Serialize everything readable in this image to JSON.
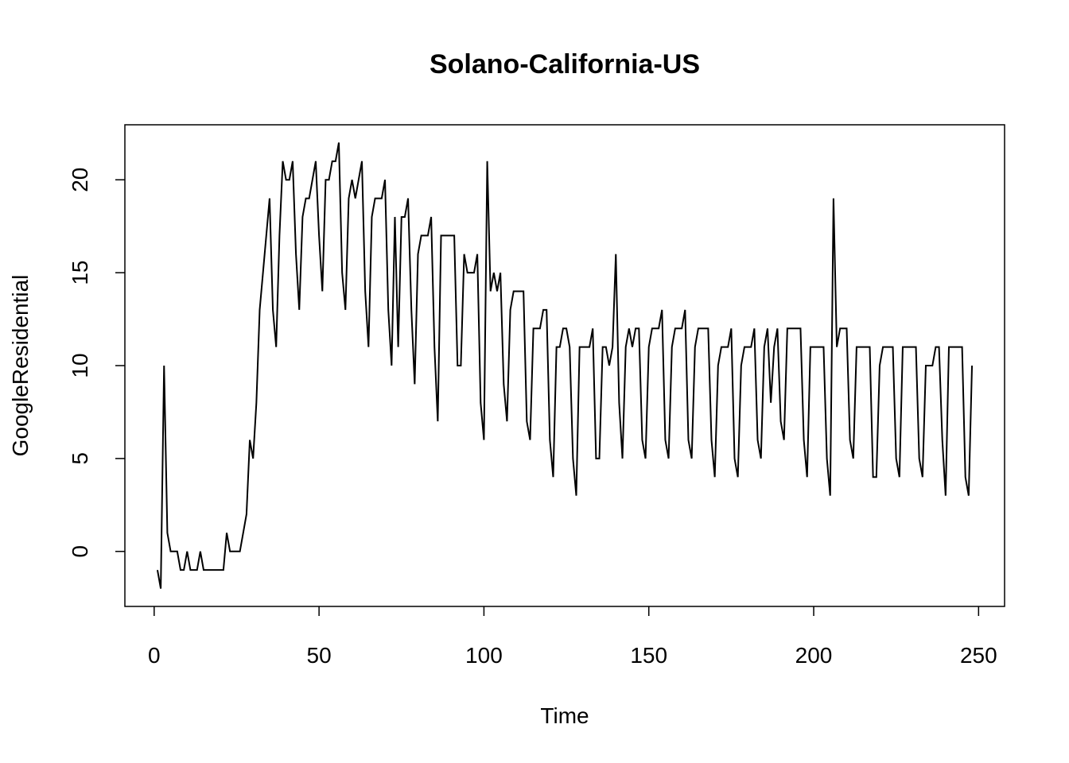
{
  "chart_data": {
    "type": "line",
    "title": "Solano-California-US",
    "x_label": "Time",
    "y_label": "GoogleResidential",
    "x": [
      1,
      2,
      3,
      4,
      5,
      6,
      7,
      8,
      9,
      10,
      11,
      12,
      13,
      14,
      15,
      16,
      17,
      18,
      19,
      20,
      21,
      22,
      23,
      24,
      25,
      26,
      27,
      28,
      29,
      30,
      31,
      32,
      33,
      34,
      35,
      36,
      37,
      38,
      39,
      40,
      41,
      42,
      43,
      44,
      45,
      46,
      47,
      48,
      49,
      50,
      51,
      52,
      53,
      54,
      55,
      56,
      57,
      58,
      59,
      60,
      61,
      62,
      63,
      64,
      65,
      66,
      67,
      68,
      69,
      70,
      71,
      72,
      73,
      74,
      75,
      76,
      77,
      78,
      79,
      80,
      81,
      82,
      83,
      84,
      85,
      86,
      87,
      88,
      89,
      90,
      91,
      92,
      93,
      94,
      95,
      96,
      97,
      98,
      99,
      100,
      101,
      102,
      103,
      104,
      105,
      106,
      107,
      108,
      109,
      110,
      111,
      112,
      113,
      114,
      115,
      116,
      117,
      118,
      119,
      120,
      121,
      122,
      123,
      124,
      125,
      126,
      127,
      128,
      129,
      130,
      131,
      132,
      133,
      134,
      135,
      136,
      137,
      138,
      139,
      140,
      141,
      142,
      143,
      144,
      145,
      146,
      147,
      148,
      149,
      150,
      151,
      152,
      153,
      154,
      155,
      156,
      157,
      158,
      159,
      160,
      161,
      162,
      163,
      164,
      165,
      166,
      167,
      168,
      169,
      170,
      171,
      172,
      173,
      174,
      175,
      176,
      177,
      178,
      179,
      180,
      181,
      182,
      183,
      184,
      185,
      186,
      187,
      188,
      189,
      190,
      191,
      192,
      193,
      194,
      195,
      196,
      197,
      198,
      199,
      200,
      201,
      202,
      203,
      204,
      205,
      206,
      207,
      208,
      209,
      210,
      211,
      212,
      213,
      214,
      215,
      216,
      217,
      218,
      219,
      220,
      221,
      222,
      223,
      224,
      225,
      226,
      227,
      228,
      229,
      230,
      231,
      232,
      233,
      234,
      235,
      236,
      237,
      238,
      239,
      240,
      241,
      242,
      243,
      244,
      245,
      246,
      247,
      248
    ],
    "values": [
      -1,
      -2,
      10,
      1,
      0,
      0,
      0,
      -1,
      -1,
      0,
      -1,
      -1,
      -1,
      0,
      -1,
      -1,
      -1,
      -1,
      -1,
      -1,
      -1,
      1,
      0,
      0,
      0,
      0,
      1,
      2,
      6,
      5,
      8,
      13,
      15,
      17,
      19,
      13,
      11,
      17,
      21,
      20,
      20,
      21,
      16,
      13,
      18,
      19,
      19,
      20,
      21,
      17,
      14,
      20,
      20,
      21,
      21,
      22,
      15,
      13,
      19,
      20,
      19,
      20,
      21,
      14,
      11,
      18,
      19,
      19,
      19,
      20,
      13,
      10,
      18,
      11,
      18,
      18,
      19,
      13,
      9,
      16,
      17,
      17,
      17,
      18,
      11,
      7,
      17,
      17,
      17,
      17,
      17,
      10,
      10,
      16,
      15,
      15,
      15,
      16,
      8,
      6,
      21,
      14,
      15,
      14,
      15,
      9,
      7,
      13,
      14,
      14,
      14,
      14,
      7,
      6,
      12,
      12,
      12,
      13,
      13,
      6,
      4,
      11,
      11,
      12,
      12,
      11,
      5,
      3,
      11,
      11,
      11,
      11,
      12,
      5,
      5,
      11,
      11,
      10,
      11,
      16,
      8,
      5,
      11,
      12,
      11,
      12,
      12,
      6,
      5,
      11,
      12,
      12,
      12,
      13,
      6,
      5,
      11,
      12,
      12,
      12,
      13,
      6,
      5,
      11,
      12,
      12,
      12,
      12,
      6,
      4,
      10,
      11,
      11,
      11,
      12,
      5,
      4,
      10,
      11,
      11,
      11,
      12,
      6,
      5,
      11,
      12,
      8,
      11,
      12,
      7,
      6,
      12,
      12,
      12,
      12,
      12,
      6,
      4,
      11,
      11,
      11,
      11,
      11,
      5,
      3,
      19,
      11,
      12,
      12,
      12,
      6,
      5,
      11,
      11,
      11,
      11,
      11,
      4,
      4,
      10,
      11,
      11,
      11,
      11,
      5,
      4,
      11,
      11,
      11,
      11,
      11,
      5,
      4,
      10,
      10,
      10,
      11,
      11,
      6,
      3,
      11,
      11,
      11,
      11,
      11,
      4,
      3,
      10
    ],
    "color": "#000000",
    "xlim": [
      -8.88,
      257.88
    ],
    "xticks": [
      0,
      50,
      100,
      150,
      200,
      250
    ],
    "ylim": [
      -2.96,
      22.96
    ],
    "yticks": [
      0,
      5,
      10,
      15,
      20
    ]
  }
}
